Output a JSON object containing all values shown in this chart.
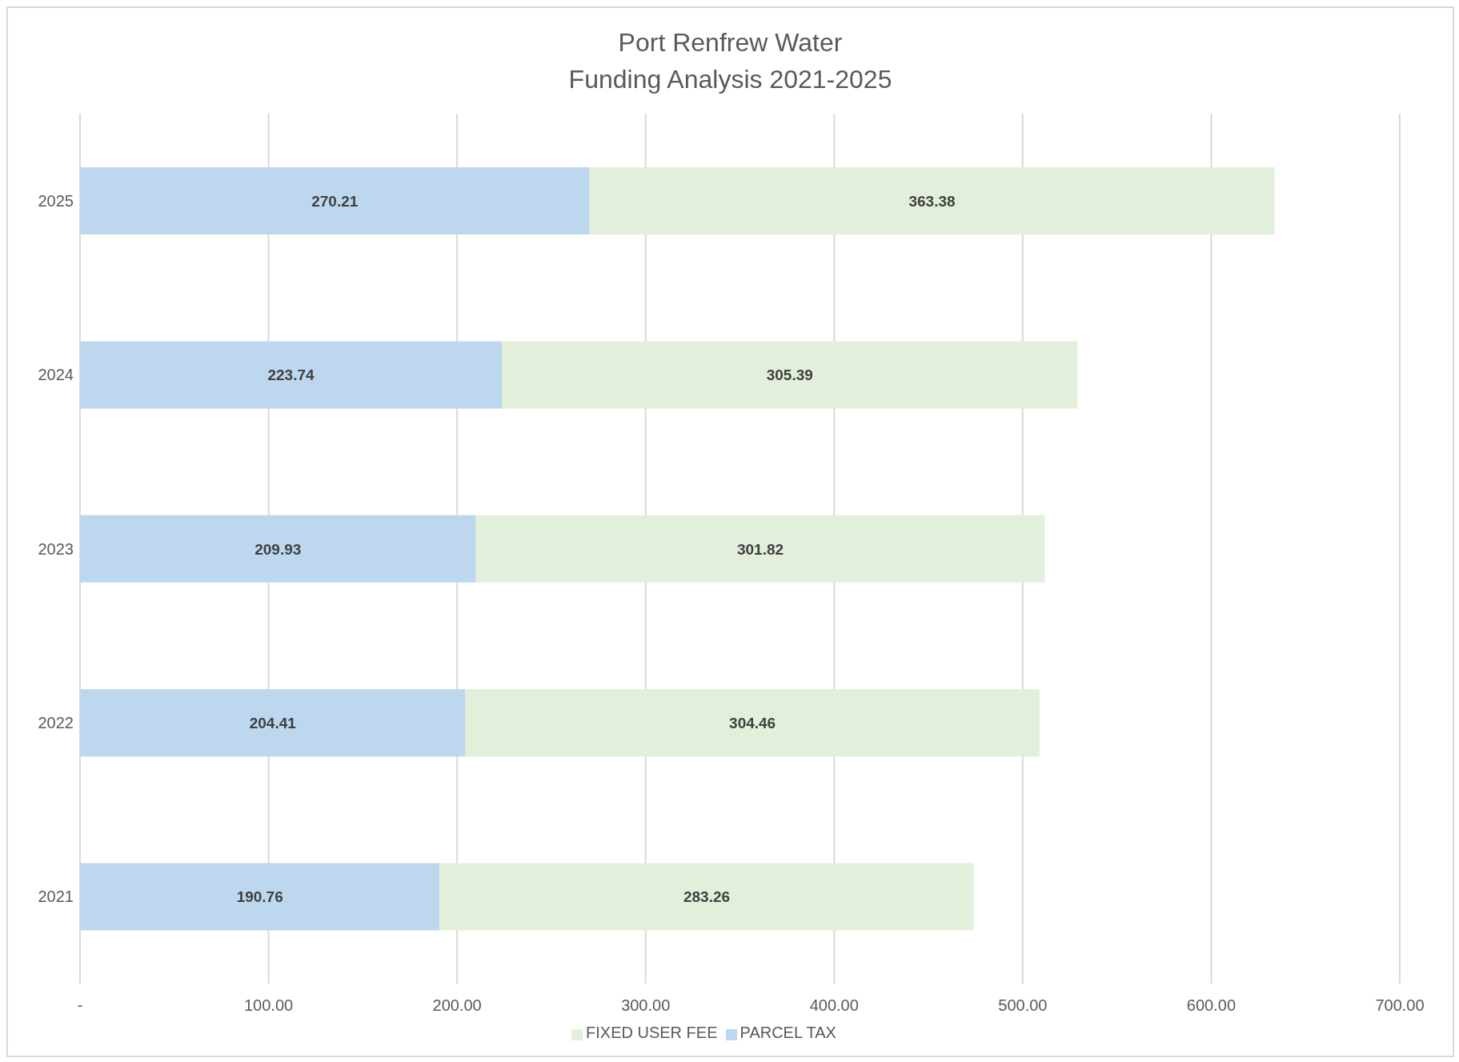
{
  "chart_data": {
    "type": "bar",
    "orientation": "horizontal",
    "stacked": true,
    "title": "Port Renfrew Water",
    "subtitle": "Funding Analysis 2021-2025",
    "categories": [
      "2025",
      "2024",
      "2023",
      "2022",
      "2021"
    ],
    "series": [
      {
        "name": "PARCEL TAX",
        "color": "#bdd7ee",
        "values": [
          270.21,
          223.74,
          209.93,
          204.41,
          190.76
        ]
      },
      {
        "name": "FIXED USER FEE",
        "color": "#e2efda",
        "values": [
          363.38,
          305.39,
          301.82,
          304.46,
          283.26
        ]
      }
    ],
    "xlim": [
      0,
      700
    ],
    "xticks": [
      {
        "value": 0,
        "label": "-"
      },
      {
        "value": 100,
        "label": "100.00"
      },
      {
        "value": 200,
        "label": "200.00"
      },
      {
        "value": 300,
        "label": "300.00"
      },
      {
        "value": 400,
        "label": "400.00"
      },
      {
        "value": 500,
        "label": "500.00"
      },
      {
        "value": 600,
        "label": "600.00"
      },
      {
        "value": 700,
        "label": "700.00"
      }
    ],
    "grid": "x",
    "legend": "bottom",
    "data_labels": true
  }
}
